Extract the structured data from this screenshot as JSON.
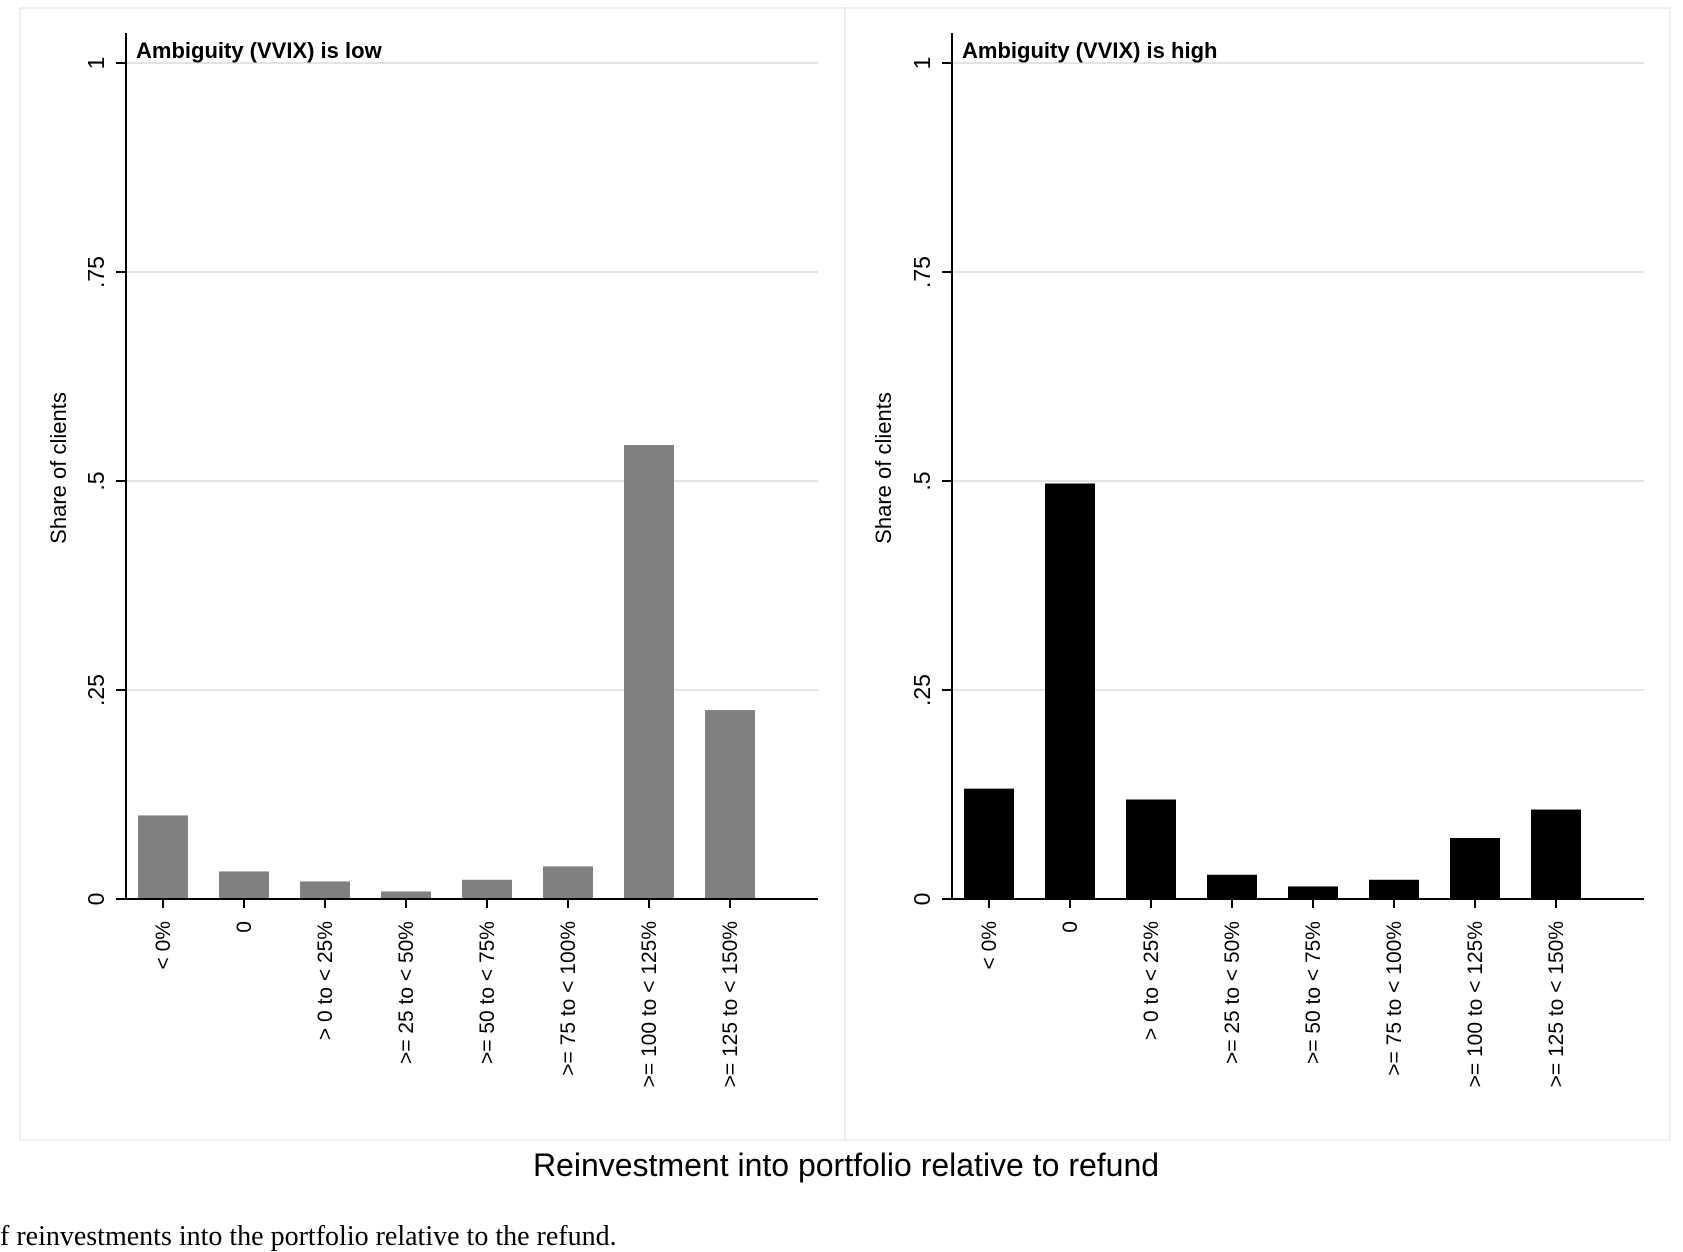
{
  "figure": {
    "xlabel": "Reinvestment into portfolio relative to refund",
    "caption": "f reinvestments into the portfolio relative to the refund."
  },
  "chart_data": [
    {
      "type": "bar",
      "title": "Ambiguity (VVIX) is low",
      "ylabel": "Share of clients",
      "ylim": [
        0,
        1
      ],
      "yticks": [
        0,
        0.25,
        0.5,
        0.75,
        1
      ],
      "ytick_labels": [
        "0",
        ".25",
        ".5",
        ".75",
        "1"
      ],
      "grid": true,
      "categories": [
        "< 0%",
        "0",
        "> 0 to < 25%",
        ">= 25 to < 50%",
        ">= 50 to < 75%",
        ">= 75 to < 100%",
        ">= 100 to < 125%",
        ">= 125 to < 150%"
      ],
      "values": [
        0.1,
        0.033,
        0.021,
        0.009,
        0.023,
        0.039,
        0.543,
        0.226
      ],
      "bar_color": "#808080"
    },
    {
      "type": "bar",
      "title": "Ambiguity (VVIX) is high",
      "ylabel": "Share of clients",
      "ylim": [
        0,
        1
      ],
      "yticks": [
        0,
        0.25,
        0.5,
        0.75,
        1
      ],
      "ytick_labels": [
        "0",
        ".25",
        ".5",
        ".75",
        "1"
      ],
      "grid": true,
      "categories": [
        "< 0%",
        "0",
        "> 0 to < 25%",
        ">= 25 to < 50%",
        ">= 50 to < 75%",
        ">= 75 to < 100%",
        ">= 100 to < 125%",
        ">= 125 to < 150%"
      ],
      "values": [
        0.132,
        0.497,
        0.119,
        0.029,
        0.015,
        0.023,
        0.073,
        0.107
      ],
      "bar_color": "#000000"
    }
  ]
}
